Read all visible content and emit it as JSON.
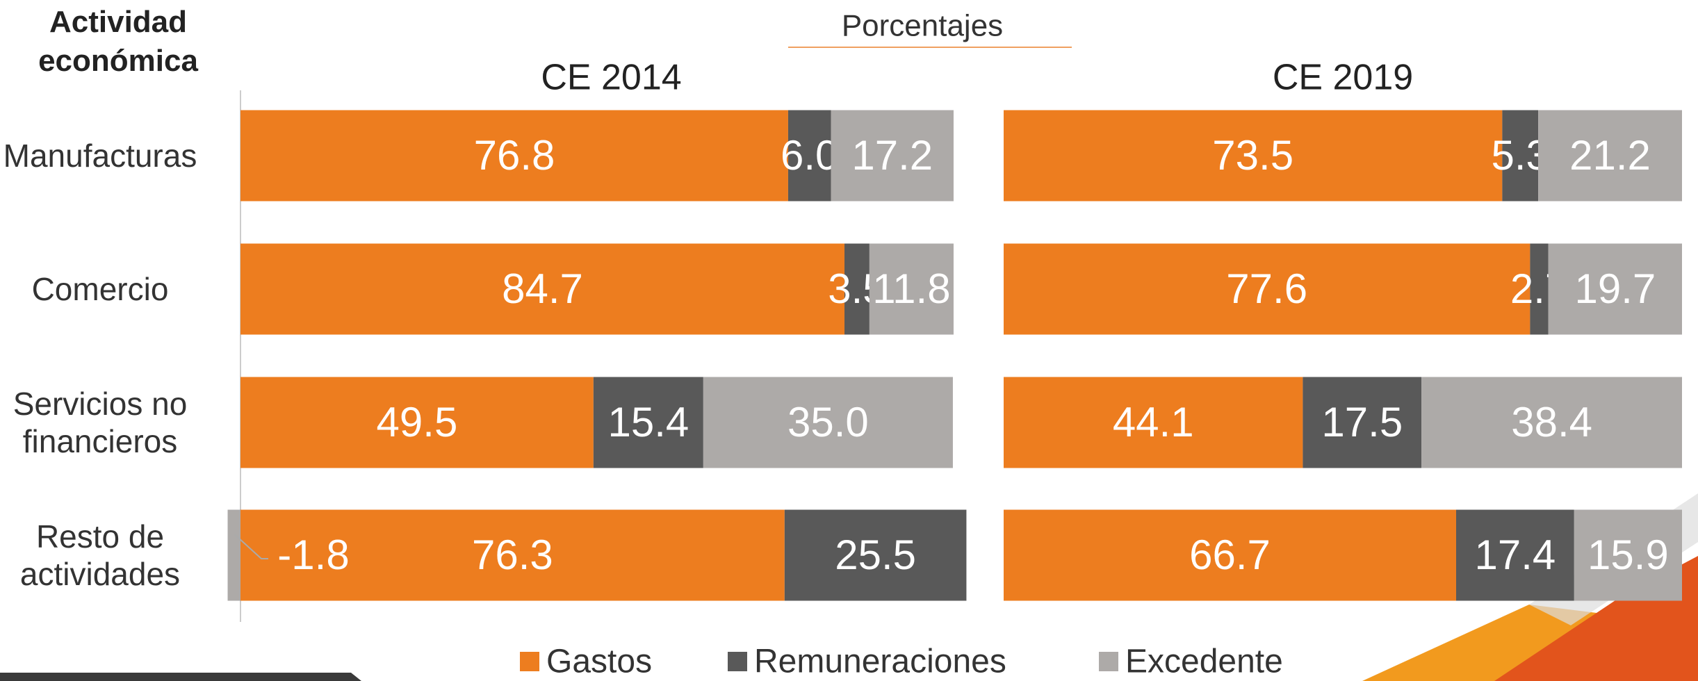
{
  "header": {
    "axis_title": "Actividad económica",
    "subtitle": "Porcentajes"
  },
  "chart_data": [
    {
      "type": "bar",
      "orientation": "horizontal",
      "stacked": true,
      "title": "CE 2014",
      "categories": [
        "Manufacturas",
        "Comercio",
        "Servicios no financieros",
        "Resto de actividades"
      ],
      "xlim": [
        -2,
        102
      ],
      "series": [
        {
          "name": "Gastos",
          "color": "#ED7D1F",
          "values": [
            76.8,
            84.7,
            49.5,
            76.3
          ],
          "value_labels": [
            "76.8",
            "84.7",
            "49.5",
            "76.3"
          ]
        },
        {
          "name": "Remuneraciones",
          "color": "#595959",
          "values": [
            6.0,
            3.5,
            15.4,
            25.5
          ],
          "value_labels": [
            "6.0",
            "3.5",
            "15.4",
            "25.5"
          ]
        },
        {
          "name": "Excedente",
          "color": "#ADAAA8",
          "values": [
            17.2,
            11.8,
            35.0,
            -1.8
          ],
          "value_labels": [
            "17.2",
            "11.8",
            "35.0",
            "-1.8"
          ]
        }
      ]
    },
    {
      "type": "bar",
      "orientation": "horizontal",
      "stacked": true,
      "title": "CE 2019",
      "categories": [
        "Manufacturas",
        "Comercio",
        "Servicios no financieros",
        "Resto de actividades"
      ],
      "xlim": [
        0,
        100
      ],
      "series": [
        {
          "name": "Gastos",
          "color": "#ED7D1F",
          "values": [
            73.5,
            77.6,
            44.1,
            66.7
          ],
          "value_labels": [
            "73.5",
            "77.6",
            "44.1",
            "66.7"
          ]
        },
        {
          "name": "Remuneraciones",
          "color": "#595959",
          "values": [
            5.3,
            2.7,
            17.5,
            17.4
          ],
          "value_labels": [
            "5.3",
            "2.7",
            "17.5",
            "17.4"
          ]
        },
        {
          "name": "Excedente",
          "color": "#ADAAA8",
          "values": [
            21.2,
            19.7,
            38.4,
            15.9
          ],
          "value_labels": [
            "21.2",
            "19.7",
            "38.4",
            "15.9"
          ]
        }
      ]
    }
  ]
}
